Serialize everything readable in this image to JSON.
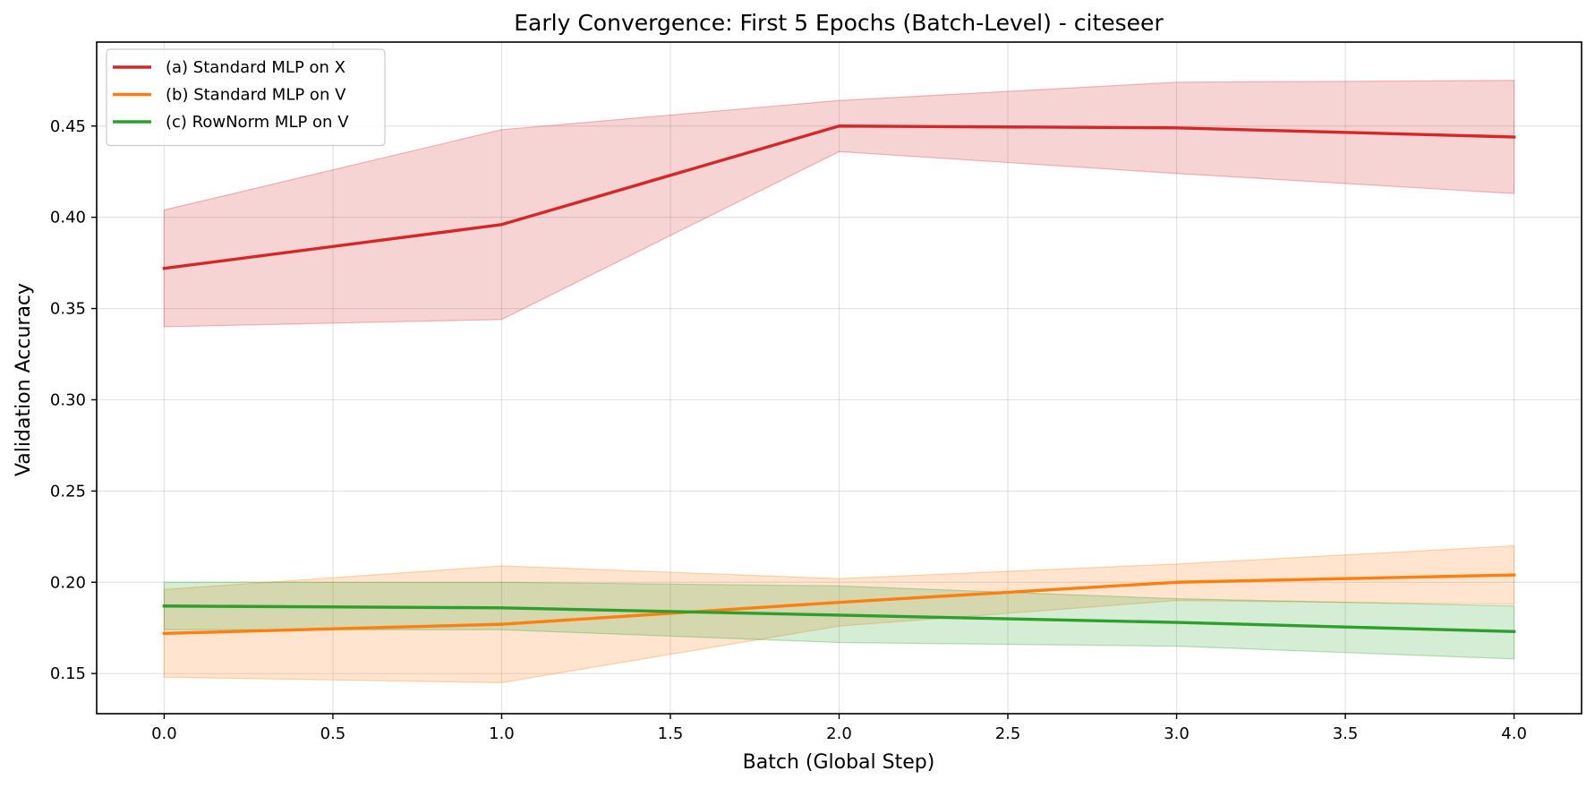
{
  "chart_data": {
    "type": "line",
    "title": "Early Convergence: First 5 Epochs (Batch-Level) - citeseer",
    "xlabel": "Batch (Global Step)",
    "ylabel": "Validation Accuracy",
    "xlim": [
      -0.2,
      4.2
    ],
    "ylim": [
      0.128,
      0.496
    ],
    "xticks": [
      0.0,
      0.5,
      1.0,
      1.5,
      2.0,
      2.5,
      3.0,
      3.5,
      4.0
    ],
    "xtick_labels": [
      "0.0",
      "0.5",
      "1.0",
      "1.5",
      "2.0",
      "2.5",
      "3.0",
      "3.5",
      "4.0"
    ],
    "yticks": [
      0.15,
      0.2,
      0.25,
      0.3,
      0.35,
      0.4,
      0.45
    ],
    "ytick_labels": [
      "0.15",
      "0.20",
      "0.25",
      "0.30",
      "0.35",
      "0.40",
      "0.45"
    ],
    "grid": true,
    "legend_position": "top-left",
    "x": [
      0,
      1,
      2,
      3,
      4
    ],
    "series": [
      {
        "name": "(a) Standard MLP on X",
        "color": "#d62728",
        "values": [
          0.372,
          0.396,
          0.45,
          0.449,
          0.444
        ],
        "upper": [
          0.404,
          0.448,
          0.464,
          0.474,
          0.475
        ],
        "lower": [
          0.34,
          0.344,
          0.436,
          0.424,
          0.413
        ]
      },
      {
        "name": "(b) Standard MLP on V",
        "color": "#ff7f0e",
        "values": [
          0.172,
          0.177,
          0.189,
          0.2,
          0.204
        ],
        "upper": [
          0.196,
          0.209,
          0.202,
          0.21,
          0.22
        ],
        "lower": [
          0.148,
          0.145,
          0.176,
          0.19,
          0.188
        ]
      },
      {
        "name": "(c) RowNorm MLP on V",
        "color": "#2ca02c",
        "values": [
          0.187,
          0.186,
          0.182,
          0.178,
          0.173
        ],
        "upper": [
          0.2,
          0.2,
          0.198,
          0.191,
          0.187
        ],
        "lower": [
          0.174,
          0.174,
          0.167,
          0.165,
          0.158
        ]
      }
    ]
  }
}
